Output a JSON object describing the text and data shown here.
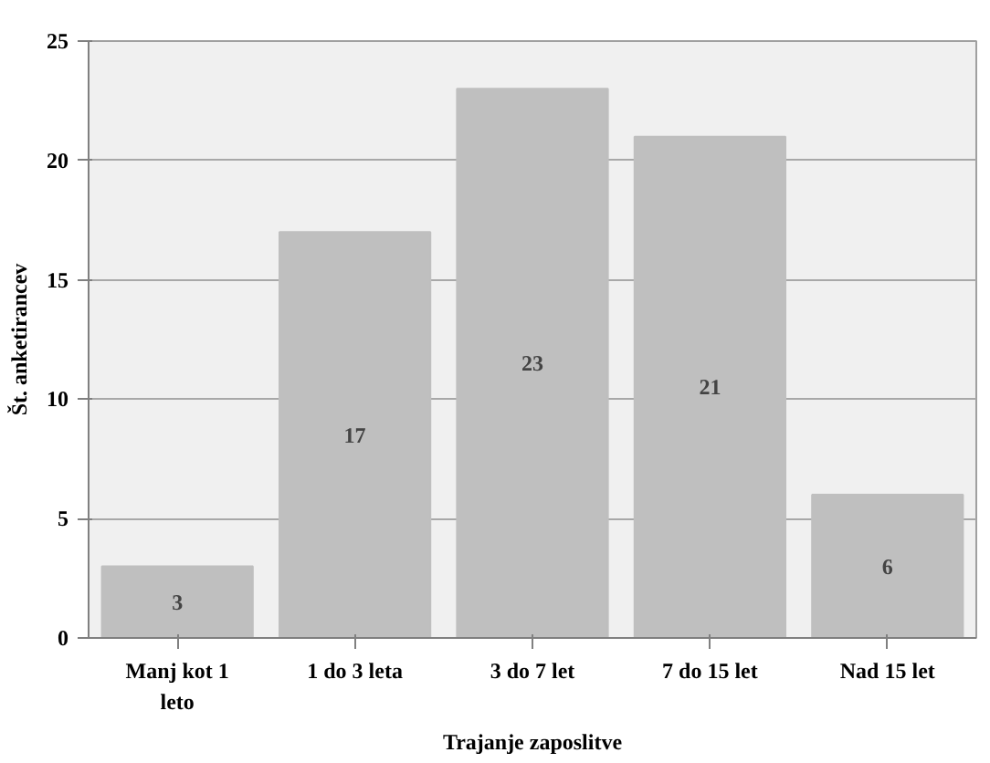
{
  "chart_data": {
    "type": "bar",
    "categories": [
      "Manj kot 1\nleto",
      "1 do 3 leta",
      "3 do 7 let",
      "7 do 15 let",
      "Nad 15 let"
    ],
    "values": [
      3,
      17,
      23,
      21,
      6
    ],
    "color": "#bfbfbf",
    "data_labels": true,
    "xlabel": "Trajanje zaposlitve",
    "ylabel": "Št. anketirancev",
    "ylim": [
      0,
      25
    ],
    "yticks": [
      0,
      5,
      10,
      15,
      20,
      25
    ],
    "grid": "y"
  }
}
